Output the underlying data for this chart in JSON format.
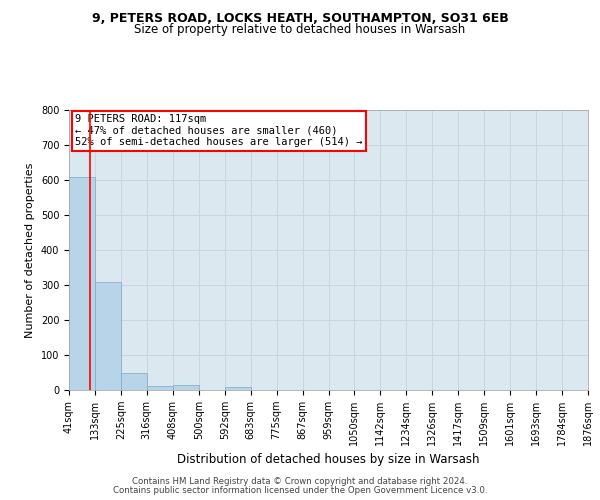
{
  "title_line1": "9, PETERS ROAD, LOCKS HEATH, SOUTHAMPTON, SO31 6EB",
  "title_line2": "Size of property relative to detached houses in Warsash",
  "xlabel": "Distribution of detached houses by size in Warsash",
  "ylabel": "Number of detached properties",
  "footer_line1": "Contains HM Land Registry data © Crown copyright and database right 2024.",
  "footer_line2": "Contains public sector information licensed under the Open Government Licence v3.0.",
  "bin_edges": [
    41,
    133,
    225,
    316,
    408,
    500,
    592,
    683,
    775,
    867,
    959,
    1050,
    1142,
    1234,
    1326,
    1417,
    1509,
    1601,
    1693,
    1784,
    1876
  ],
  "bar_heights": [
    608,
    310,
    50,
    11,
    13,
    0,
    8,
    0,
    0,
    0,
    0,
    0,
    0,
    0,
    0,
    0,
    0,
    0,
    0,
    0
  ],
  "bar_color": "#b8d4e8",
  "bar_edge_color": "#7aaac8",
  "grid_color": "#c8d4e4",
  "background_color": "#dce8f0",
  "red_line_x": 117,
  "annotation_text_line1": "9 PETERS ROAD: 117sqm",
  "annotation_text_line2": "← 47% of detached houses are smaller (460)",
  "annotation_text_line3": "52% of semi-detached houses are larger (514) →",
  "annotation_box_color": "white",
  "annotation_border_color": "red",
  "ylim": [
    0,
    800
  ],
  "yticks": [
    0,
    100,
    200,
    300,
    400,
    500,
    600,
    700,
    800
  ],
  "title1_fontsize": 9.0,
  "title2_fontsize": 8.5,
  "ylabel_fontsize": 8.0,
  "xlabel_fontsize": 8.5,
  "tick_fontsize": 7.0,
  "annot_fontsize": 7.5
}
